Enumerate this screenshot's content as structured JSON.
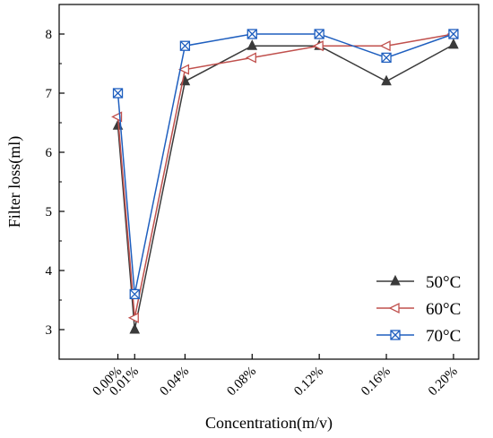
{
  "chart_data": {
    "type": "line",
    "title": "",
    "xlabel": "Concentration(m/v)",
    "ylabel": "Filter loss(ml)",
    "x_values": [
      0.0,
      0.01,
      0.04,
      0.08,
      0.12,
      0.16,
      0.2
    ],
    "x_tick_labels": [
      "0.00%",
      "0.01%",
      "0.04%",
      "0.08%",
      "0.12%",
      "0.16%",
      "0.20%"
    ],
    "xlim": [
      -0.035,
      0.215
    ],
    "ylim": [
      2.5,
      8.5
    ],
    "y_ticks": [
      3,
      4,
      5,
      6,
      7,
      8
    ],
    "grid": false,
    "legend_position": "bottom-right",
    "series": [
      {
        "name": "50°C",
        "color": "#3a3a3a",
        "marker": "triangle-up",
        "values": [
          6.45,
          3.0,
          7.2,
          7.8,
          7.8,
          7.2,
          7.82
        ]
      },
      {
        "name": "60°C",
        "color": "#c0504d",
        "marker": "triangle-left",
        "values": [
          6.6,
          3.2,
          7.4,
          7.6,
          7.8,
          7.8,
          8.0
        ]
      },
      {
        "name": "70°C",
        "color": "#1f5fbf",
        "marker": "x-square",
        "values": [
          7.0,
          3.6,
          7.8,
          8.0,
          8.0,
          7.6,
          8.0
        ]
      }
    ]
  }
}
